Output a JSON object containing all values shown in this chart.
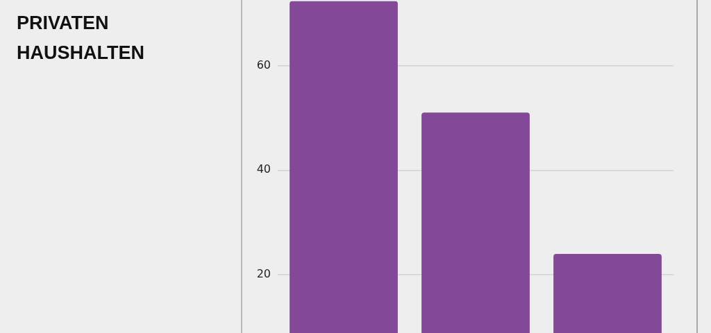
{
  "chart_data": {
    "type": "bar",
    "title": "PRIVATEN\nHAUSHALTEN",
    "categories": [
      null,
      null,
      null
    ],
    "values": [
      72.3,
      51,
      24
    ],
    "color": "#834897",
    "ylim": [
      8.7,
      72.3
    ],
    "yticks": [
      20,
      40,
      60
    ],
    "grid": "y",
    "tick_labels": "y"
  }
}
